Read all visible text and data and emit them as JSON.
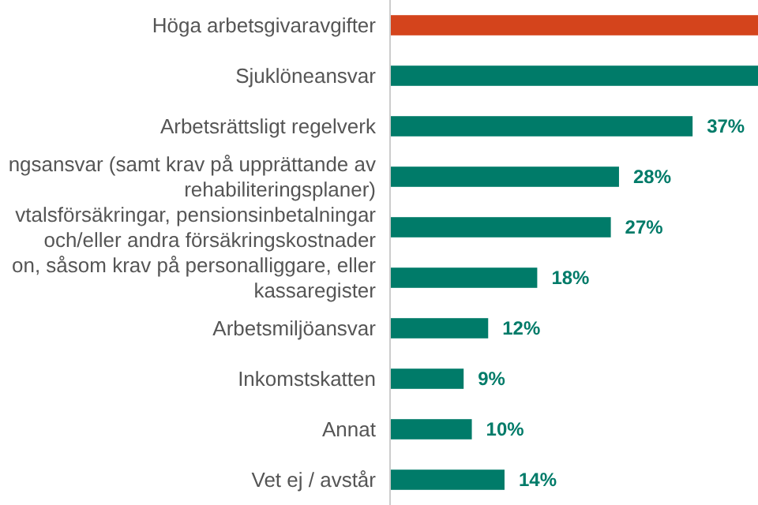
{
  "chart_data": {
    "type": "bar",
    "orientation": "horizontal",
    "categories": [
      "Höga arbetsgivaravgifter",
      "Sjuklöneansvar",
      "Arbetsrättsligt regelverk",
      "ngsansvar (samt krav på upprättande av\nrehabiliteringsplaner)",
      "vtalsförsäkringar, pensionsinbetalningar\noch/eller andra försäkringskostnader",
      "on, såsom krav på personalliggare, eller\nkassaregister",
      "Arbetsmiljöansvar",
      "Inkomstskatten",
      "Annat",
      "Vet ej / avstår"
    ],
    "values": [
      45,
      45,
      37,
      28,
      27,
      18,
      12,
      9,
      10,
      14
    ],
    "colors": [
      "#d4441c",
      "#007b69",
      "#007b69",
      "#007b69",
      "#007b69",
      "#007b69",
      "#007b69",
      "#007b69",
      "#007b69",
      "#007b69"
    ],
    "value_labels": [
      null,
      null,
      "37%",
      "28%",
      "27%",
      "18%",
      "12%",
      "9%",
      "10%",
      "14%"
    ]
  }
}
